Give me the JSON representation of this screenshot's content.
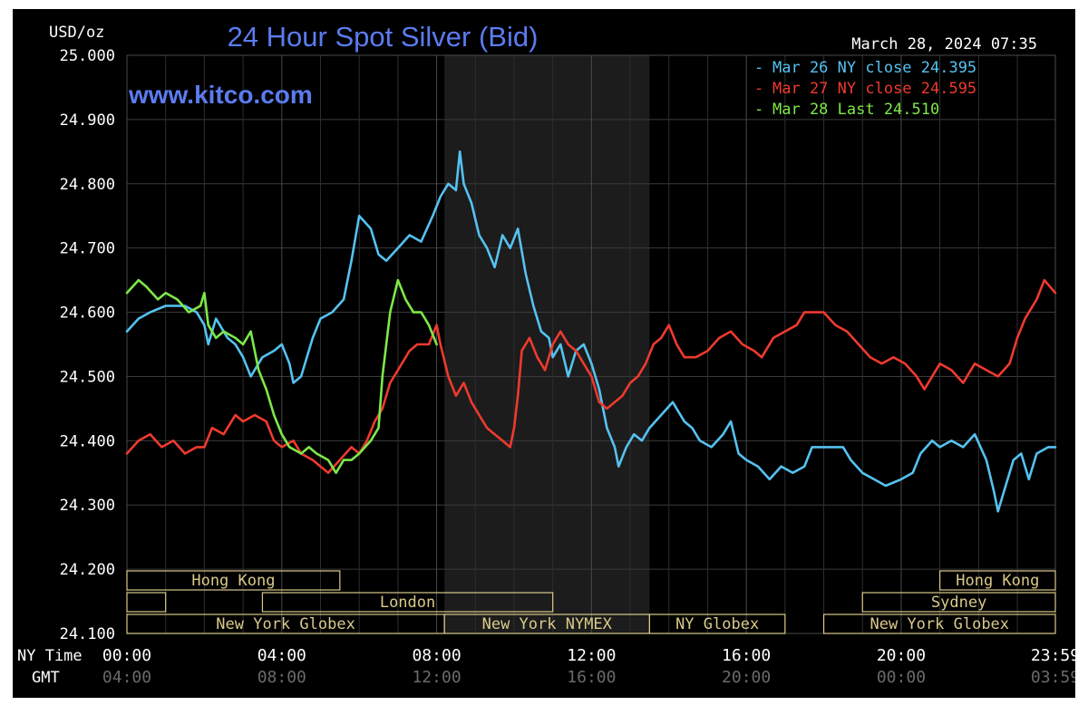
{
  "chart_data": {
    "type": "line",
    "title": "24 Hour Spot Silver (Bid)",
    "watermark": "www.kitco.com",
    "timestamp": "March 28, 2024 07:35",
    "ylabel": "USD/oz",
    "ylim": [
      24.1,
      25.0
    ],
    "y_ticks": [
      "25.000",
      "24.900",
      "24.800",
      "24.700",
      "24.600",
      "24.500",
      "24.400",
      "24.300",
      "24.200",
      "24.100"
    ],
    "x_row_labels": [
      "NY Time",
      "GMT"
    ],
    "x_ticks_ny": [
      "00:00",
      "04:00",
      "08:00",
      "12:00",
      "16:00",
      "20:00",
      "23:59"
    ],
    "x_ticks_gmt": [
      "04:00",
      "08:00",
      "12:00",
      "16:00",
      "20:00",
      "00:00",
      "03:59"
    ],
    "xlim": [
      0,
      23.983
    ],
    "grid": true,
    "legend_position": "top-right",
    "shaded_region": [
      8.2,
      13.5
    ],
    "sessions": [
      {
        "label": "Hong Kong",
        "start": 0,
        "end": 5.5,
        "row": 0
      },
      {
        "label": "Hong Kong",
        "start": 21.0,
        "end": 23.983,
        "row": 0
      },
      {
        "label": "",
        "start": 0,
        "end": 1.0,
        "row": 1
      },
      {
        "label": "London",
        "start": 3.5,
        "end": 11.0,
        "row": 1
      },
      {
        "label": "Sydney",
        "start": 19.0,
        "end": 23.983,
        "row": 1
      },
      {
        "label": "New York Globex",
        "start": 0,
        "end": 8.2,
        "row": 2
      },
      {
        "label": "New York NYMEX",
        "start": 8.2,
        "end": 13.5,
        "row": 2
      },
      {
        "label": "NY Globex",
        "start": 13.5,
        "end": 17.0,
        "row": 2
      },
      {
        "label": "New York Globex",
        "start": 18.0,
        "end": 23.983,
        "row": 2
      }
    ],
    "series": [
      {
        "name": "Mar 26 NY close 24.395",
        "color": "#55c2f0",
        "points": [
          [
            0,
            24.57
          ],
          [
            0.3,
            24.59
          ],
          [
            0.6,
            24.6
          ],
          [
            1.0,
            24.61
          ],
          [
            1.5,
            24.61
          ],
          [
            1.8,
            24.6
          ],
          [
            2.0,
            24.58
          ],
          [
            2.1,
            24.55
          ],
          [
            2.3,
            24.59
          ],
          [
            2.6,
            24.56
          ],
          [
            2.8,
            24.55
          ],
          [
            3.0,
            24.53
          ],
          [
            3.2,
            24.5
          ],
          [
            3.5,
            24.53
          ],
          [
            3.8,
            24.54
          ],
          [
            4.0,
            24.55
          ],
          [
            4.2,
            24.52
          ],
          [
            4.3,
            24.49
          ],
          [
            4.5,
            24.5
          ],
          [
            4.8,
            24.56
          ],
          [
            5.0,
            24.59
          ],
          [
            5.3,
            24.6
          ],
          [
            5.6,
            24.62
          ],
          [
            5.8,
            24.68
          ],
          [
            6.0,
            24.75
          ],
          [
            6.3,
            24.73
          ],
          [
            6.5,
            24.69
          ],
          [
            6.7,
            24.68
          ],
          [
            7.0,
            24.7
          ],
          [
            7.3,
            24.72
          ],
          [
            7.6,
            24.71
          ],
          [
            7.9,
            24.75
          ],
          [
            8.1,
            24.78
          ],
          [
            8.3,
            24.8
          ],
          [
            8.5,
            24.79
          ],
          [
            8.6,
            24.85
          ],
          [
            8.7,
            24.8
          ],
          [
            8.9,
            24.77
          ],
          [
            9.1,
            24.72
          ],
          [
            9.3,
            24.7
          ],
          [
            9.5,
            24.67
          ],
          [
            9.7,
            24.72
          ],
          [
            9.9,
            24.7
          ],
          [
            10.1,
            24.73
          ],
          [
            10.3,
            24.66
          ],
          [
            10.5,
            24.61
          ],
          [
            10.7,
            24.57
          ],
          [
            10.9,
            24.56
          ],
          [
            11.0,
            24.53
          ],
          [
            11.2,
            24.55
          ],
          [
            11.4,
            24.5
          ],
          [
            11.6,
            24.54
          ],
          [
            11.8,
            24.55
          ],
          [
            12.0,
            24.52
          ],
          [
            12.2,
            24.48
          ],
          [
            12.4,
            24.42
          ],
          [
            12.6,
            24.39
          ],
          [
            12.7,
            24.36
          ],
          [
            12.9,
            24.39
          ],
          [
            13.1,
            24.41
          ],
          [
            13.3,
            24.4
          ],
          [
            13.5,
            24.42
          ],
          [
            13.8,
            24.44
          ],
          [
            14.1,
            24.46
          ],
          [
            14.4,
            24.43
          ],
          [
            14.6,
            24.42
          ],
          [
            14.8,
            24.4
          ],
          [
            15.1,
            24.39
          ],
          [
            15.4,
            24.41
          ],
          [
            15.6,
            24.43
          ],
          [
            15.8,
            24.38
          ],
          [
            16.0,
            24.37
          ],
          [
            16.3,
            24.36
          ],
          [
            16.6,
            24.34
          ],
          [
            16.9,
            24.36
          ],
          [
            17.2,
            24.35
          ],
          [
            17.5,
            24.36
          ],
          [
            17.7,
            24.39
          ],
          [
            18.0,
            24.39
          ],
          [
            18.5,
            24.39
          ],
          [
            18.7,
            24.37
          ],
          [
            19.0,
            24.35
          ],
          [
            19.3,
            24.34
          ],
          [
            19.6,
            24.33
          ],
          [
            20.0,
            24.34
          ],
          [
            20.3,
            24.35
          ],
          [
            20.5,
            24.38
          ],
          [
            20.8,
            24.4
          ],
          [
            21.0,
            24.39
          ],
          [
            21.3,
            24.4
          ],
          [
            21.6,
            24.39
          ],
          [
            21.9,
            24.41
          ],
          [
            22.2,
            24.37
          ],
          [
            22.4,
            24.32
          ],
          [
            22.5,
            24.29
          ],
          [
            22.7,
            24.33
          ],
          [
            22.9,
            24.37
          ],
          [
            23.1,
            24.38
          ],
          [
            23.3,
            24.34
          ],
          [
            23.5,
            24.38
          ],
          [
            23.8,
            24.39
          ],
          [
            23.983,
            24.39
          ]
        ]
      },
      {
        "name": "Mar 27 NY close 24.595",
        "color": "#ee3a2e",
        "points": [
          [
            0,
            24.38
          ],
          [
            0.3,
            24.4
          ],
          [
            0.6,
            24.41
          ],
          [
            0.9,
            24.39
          ],
          [
            1.2,
            24.4
          ],
          [
            1.5,
            24.38
          ],
          [
            1.8,
            24.39
          ],
          [
            2.0,
            24.39
          ],
          [
            2.2,
            24.42
          ],
          [
            2.5,
            24.41
          ],
          [
            2.8,
            24.44
          ],
          [
            3.0,
            24.43
          ],
          [
            3.3,
            24.44
          ],
          [
            3.6,
            24.43
          ],
          [
            3.8,
            24.4
          ],
          [
            4.0,
            24.39
          ],
          [
            4.3,
            24.4
          ],
          [
            4.5,
            24.38
          ],
          [
            4.8,
            24.37
          ],
          [
            5.0,
            24.36
          ],
          [
            5.2,
            24.35
          ],
          [
            5.5,
            24.37
          ],
          [
            5.8,
            24.39
          ],
          [
            6.0,
            24.38
          ],
          [
            6.2,
            24.4
          ],
          [
            6.4,
            24.43
          ],
          [
            6.6,
            24.45
          ],
          [
            6.8,
            24.49
          ],
          [
            7.0,
            24.51
          ],
          [
            7.3,
            24.54
          ],
          [
            7.5,
            24.55
          ],
          [
            7.8,
            24.55
          ],
          [
            8.0,
            24.58
          ],
          [
            8.1,
            24.55
          ],
          [
            8.3,
            24.5
          ],
          [
            8.5,
            24.47
          ],
          [
            8.7,
            24.49
          ],
          [
            8.9,
            24.46
          ],
          [
            9.1,
            24.44
          ],
          [
            9.3,
            24.42
          ],
          [
            9.5,
            24.41
          ],
          [
            9.7,
            24.4
          ],
          [
            9.9,
            24.39
          ],
          [
            10.0,
            24.42
          ],
          [
            10.1,
            24.47
          ],
          [
            10.2,
            24.54
          ],
          [
            10.4,
            24.56
          ],
          [
            10.6,
            24.53
          ],
          [
            10.8,
            24.51
          ],
          [
            11.0,
            24.55
          ],
          [
            11.2,
            24.57
          ],
          [
            11.4,
            24.55
          ],
          [
            11.6,
            24.54
          ],
          [
            11.8,
            24.52
          ],
          [
            12.0,
            24.5
          ],
          [
            12.2,
            24.46
          ],
          [
            12.4,
            24.45
          ],
          [
            12.6,
            24.46
          ],
          [
            12.8,
            24.47
          ],
          [
            13.0,
            24.49
          ],
          [
            13.2,
            24.5
          ],
          [
            13.4,
            24.52
          ],
          [
            13.6,
            24.55
          ],
          [
            13.8,
            24.56
          ],
          [
            14.0,
            24.58
          ],
          [
            14.2,
            24.55
          ],
          [
            14.4,
            24.53
          ],
          [
            14.7,
            24.53
          ],
          [
            15.0,
            24.54
          ],
          [
            15.3,
            24.56
          ],
          [
            15.6,
            24.57
          ],
          [
            15.9,
            24.55
          ],
          [
            16.2,
            24.54
          ],
          [
            16.4,
            24.53
          ],
          [
            16.7,
            24.56
          ],
          [
            17.0,
            24.57
          ],
          [
            17.3,
            24.58
          ],
          [
            17.5,
            24.6
          ],
          [
            18.0,
            24.6
          ],
          [
            18.3,
            24.58
          ],
          [
            18.6,
            24.57
          ],
          [
            18.9,
            24.55
          ],
          [
            19.2,
            24.53
          ],
          [
            19.5,
            24.52
          ],
          [
            19.8,
            24.53
          ],
          [
            20.1,
            24.52
          ],
          [
            20.4,
            24.5
          ],
          [
            20.6,
            24.48
          ],
          [
            20.8,
            24.5
          ],
          [
            21.0,
            24.52
          ],
          [
            21.3,
            24.51
          ],
          [
            21.6,
            24.49
          ],
          [
            21.9,
            24.52
          ],
          [
            22.2,
            24.51
          ],
          [
            22.5,
            24.5
          ],
          [
            22.8,
            24.52
          ],
          [
            23.0,
            24.56
          ],
          [
            23.2,
            24.59
          ],
          [
            23.5,
            24.62
          ],
          [
            23.7,
            24.65
          ],
          [
            23.983,
            24.63
          ]
        ]
      },
      {
        "name": "Mar 28 Last 24.510",
        "color": "#7de84a",
        "points": [
          [
            0,
            24.63
          ],
          [
            0.3,
            24.65
          ],
          [
            0.5,
            24.64
          ],
          [
            0.8,
            24.62
          ],
          [
            1.0,
            24.63
          ],
          [
            1.3,
            24.62
          ],
          [
            1.6,
            24.6
          ],
          [
            1.9,
            24.61
          ],
          [
            2.0,
            24.63
          ],
          [
            2.1,
            24.58
          ],
          [
            2.3,
            24.56
          ],
          [
            2.5,
            24.57
          ],
          [
            2.8,
            24.56
          ],
          [
            3.0,
            24.55
          ],
          [
            3.2,
            24.57
          ],
          [
            3.4,
            24.51
          ],
          [
            3.6,
            24.48
          ],
          [
            3.8,
            24.44
          ],
          [
            4.0,
            24.41
          ],
          [
            4.2,
            24.39
          ],
          [
            4.5,
            24.38
          ],
          [
            4.7,
            24.39
          ],
          [
            4.9,
            24.38
          ],
          [
            5.2,
            24.37
          ],
          [
            5.4,
            24.35
          ],
          [
            5.6,
            24.37
          ],
          [
            5.8,
            24.37
          ],
          [
            6.0,
            24.38
          ],
          [
            6.3,
            24.4
          ],
          [
            6.5,
            24.42
          ],
          [
            6.6,
            24.5
          ],
          [
            6.8,
            24.6
          ],
          [
            7.0,
            24.65
          ],
          [
            7.2,
            24.62
          ],
          [
            7.4,
            24.6
          ],
          [
            7.6,
            24.6
          ],
          [
            7.8,
            24.58
          ],
          [
            8.0,
            24.55
          ]
        ]
      }
    ]
  }
}
